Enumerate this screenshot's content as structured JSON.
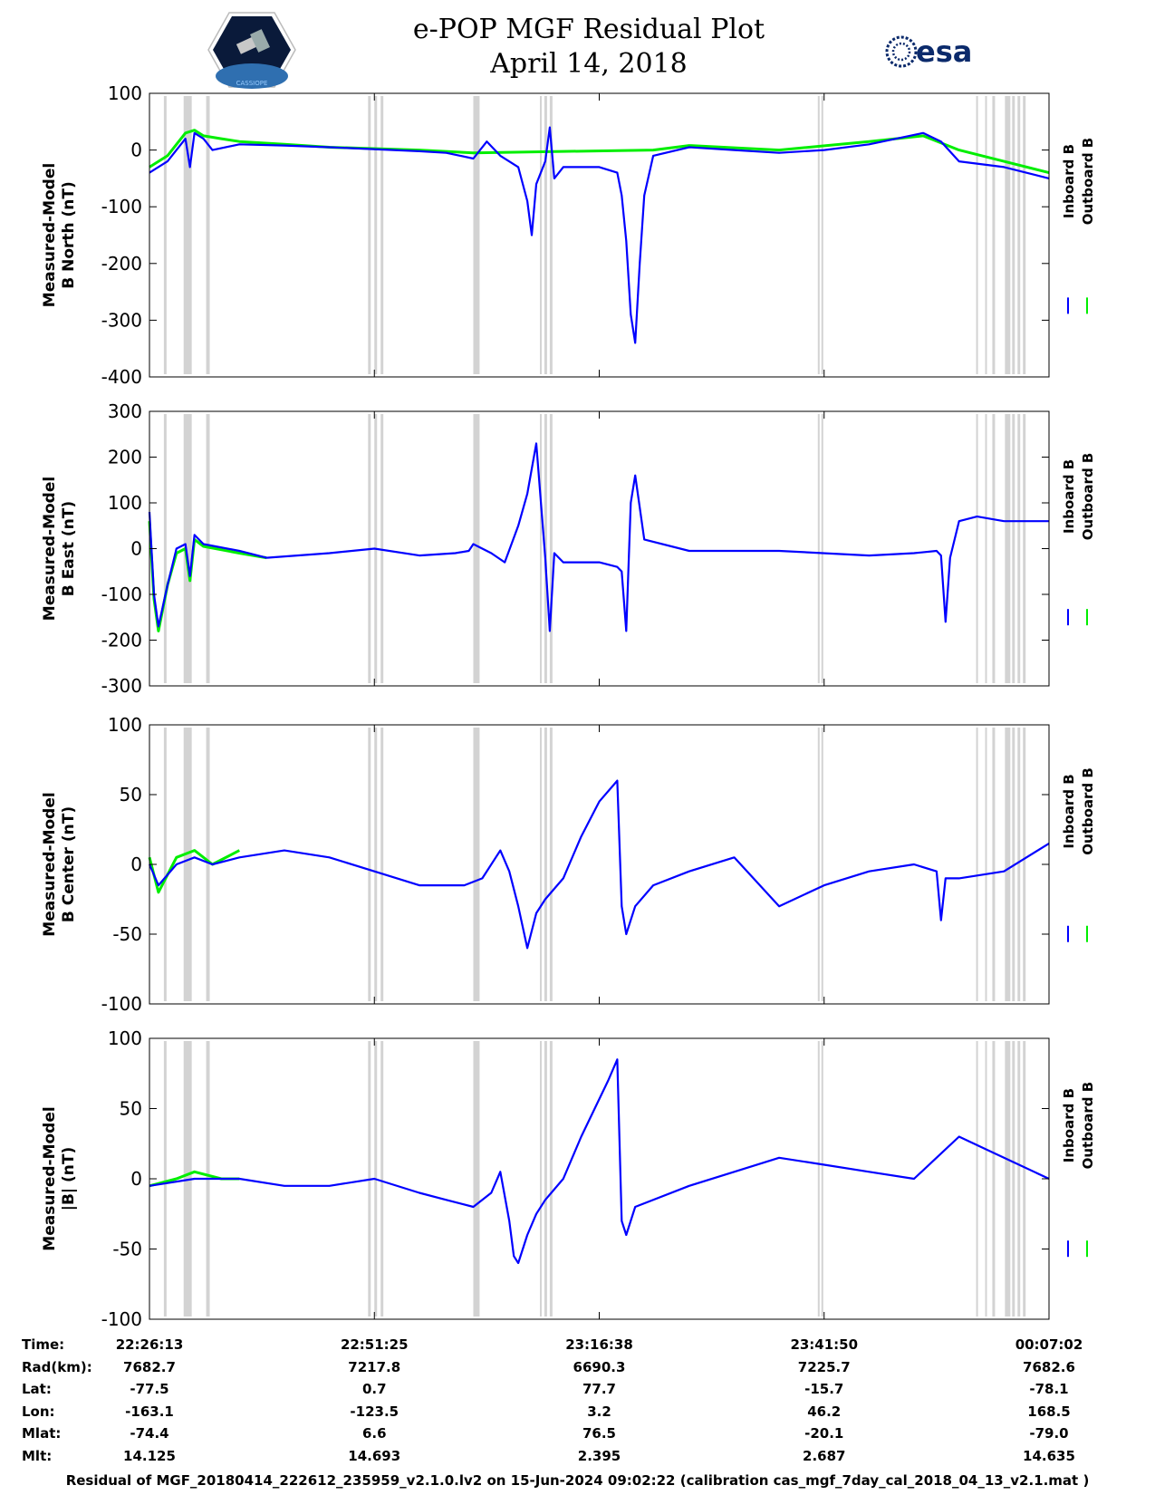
{
  "title": {
    "line1": "e-POP MGF Residual Plot",
    "line2": "April 14, 2018"
  },
  "logos": {
    "left": "CASSIOPE",
    "right": "esa"
  },
  "colors": {
    "inboard": "#0000ff",
    "outboard": "#00ee00",
    "gap_bands": "#d3d3d3"
  },
  "gap_bands": [
    [
      0.016,
      0.019
    ],
    [
      0.038,
      0.047
    ],
    [
      0.063,
      0.067
    ],
    [
      0.243,
      0.246
    ],
    [
      0.25,
      0.253
    ],
    [
      0.257,
      0.26
    ],
    [
      0.36,
      0.367
    ],
    [
      0.434,
      0.436
    ],
    [
      0.439,
      0.442
    ],
    [
      0.445,
      0.448
    ],
    [
      0.743,
      0.745
    ],
    [
      0.747,
      0.749
    ],
    [
      0.919,
      0.921
    ],
    [
      0.929,
      0.931
    ],
    [
      0.937,
      0.94
    ],
    [
      0.951,
      0.957
    ],
    [
      0.959,
      0.962
    ],
    [
      0.965,
      0.968
    ],
    [
      0.971,
      0.974
    ]
  ],
  "chart_data": [
    {
      "type": "line",
      "ylabel": "Measured-Model\nB North (nT)",
      "ylim": [
        -400,
        100
      ],
      "yticks": [
        "100",
        "0",
        "-100",
        "-200",
        "-300",
        "-400"
      ],
      "grid": false,
      "legend": [
        "Inboard B",
        "Outboard B"
      ],
      "series": [
        {
          "name": "Inboard B",
          "x": [
            0,
            0.02,
            0.04,
            0.045,
            0.05,
            0.06,
            0.07,
            0.1,
            0.15,
            0.2,
            0.3,
            0.33,
            0.36,
            0.375,
            0.39,
            0.41,
            0.42,
            0.425,
            0.43,
            0.44,
            0.445,
            0.45,
            0.46,
            0.5,
            0.52,
            0.525,
            0.53,
            0.535,
            0.54,
            0.545,
            0.55,
            0.56,
            0.6,
            0.65,
            0.7,
            0.75,
            0.8,
            0.86,
            0.88,
            0.9,
            0.95,
            1.0
          ],
          "y": [
            -40,
            -20,
            20,
            -30,
            30,
            20,
            0,
            10,
            8,
            5,
            -2,
            -5,
            -15,
            15,
            -10,
            -30,
            -90,
            -150,
            -60,
            -20,
            40,
            -50,
            -30,
            -30,
            -40,
            -80,
            -160,
            -290,
            -340,
            -200,
            -80,
            -10,
            5,
            0,
            -5,
            0,
            10,
            30,
            15,
            -20,
            -30,
            -50
          ]
        },
        {
          "name": "Outboard B",
          "x": [
            0,
            0.02,
            0.04,
            0.05,
            0.06,
            0.08,
            0.1,
            0.15,
            0.2,
            0.3,
            0.36,
            0.56,
            0.6,
            0.7,
            0.8,
            0.86,
            0.9,
            0.95,
            1.0
          ],
          "y": [
            -30,
            -10,
            30,
            35,
            25,
            20,
            15,
            10,
            5,
            0,
            -5,
            0,
            8,
            0,
            15,
            25,
            0,
            -20,
            -40
          ]
        }
      ]
    },
    {
      "type": "line",
      "ylabel": "Measured-Model\nB East (nT)",
      "ylim": [
        -300,
        300
      ],
      "yticks": [
        "300",
        "200",
        "100",
        "0",
        "-100",
        "-200",
        "-300"
      ],
      "grid": false,
      "legend": [
        "Inboard B",
        "Outboard B"
      ],
      "series": [
        {
          "name": "Inboard B",
          "x": [
            0,
            0.005,
            0.01,
            0.02,
            0.03,
            0.04,
            0.045,
            0.05,
            0.06,
            0.1,
            0.13,
            0.2,
            0.25,
            0.3,
            0.34,
            0.355,
            0.36,
            0.38,
            0.395,
            0.41,
            0.42,
            0.43,
            0.44,
            0.445,
            0.45,
            0.46,
            0.5,
            0.52,
            0.525,
            0.53,
            0.535,
            0.54,
            0.55,
            0.6,
            0.7,
            0.8,
            0.85,
            0.875,
            0.88,
            0.885,
            0.89,
            0.9,
            0.92,
            0.95,
            1.0
          ],
          "y": [
            80,
            -100,
            -170,
            -80,
            0,
            10,
            -60,
            30,
            10,
            -5,
            -20,
            -10,
            0,
            -15,
            -10,
            -5,
            10,
            -10,
            -30,
            50,
            120,
            230,
            -20,
            -180,
            -10,
            -30,
            -30,
            -40,
            -50,
            -180,
            100,
            160,
            20,
            -5,
            -5,
            -15,
            -10,
            -5,
            -15,
            -160,
            -20,
            60,
            70,
            60,
            60
          ]
        },
        {
          "name": "Outboard B",
          "x": [
            0,
            0.005,
            0.01,
            0.02,
            0.03,
            0.04,
            0.045,
            0.05,
            0.06,
            0.1,
            0.13
          ],
          "y": [
            60,
            -110,
            -180,
            -80,
            -10,
            0,
            -70,
            20,
            5,
            -10,
            -20
          ]
        }
      ]
    },
    {
      "type": "line",
      "ylabel": "Measured-Model\nB Center (nT)",
      "ylim": [
        -100,
        100
      ],
      "yticks": [
        "100",
        "50",
        "0",
        "-50",
        "-100"
      ],
      "grid": false,
      "legend": [
        "Inboard B",
        "Outboard B"
      ],
      "series": [
        {
          "name": "Inboard B",
          "x": [
            0,
            0.01,
            0.03,
            0.05,
            0.07,
            0.1,
            0.15,
            0.2,
            0.25,
            0.3,
            0.35,
            0.37,
            0.385,
            0.39,
            0.4,
            0.41,
            0.42,
            0.43,
            0.44,
            0.46,
            0.48,
            0.5,
            0.52,
            0.525,
            0.53,
            0.54,
            0.56,
            0.6,
            0.65,
            0.7,
            0.75,
            0.8,
            0.85,
            0.875,
            0.88,
            0.885,
            0.9,
            0.95,
            1.0
          ],
          "y": [
            0,
            -15,
            0,
            5,
            0,
            5,
            10,
            5,
            -5,
            -15,
            -15,
            -10,
            5,
            10,
            -5,
            -30,
            -60,
            -35,
            -25,
            -10,
            20,
            45,
            60,
            -30,
            -50,
            -30,
            -15,
            -5,
            5,
            -30,
            -15,
            -5,
            0,
            -5,
            -40,
            -10,
            -10,
            -5,
            15
          ]
        },
        {
          "name": "Outboard B",
          "x": [
            0,
            0.01,
            0.03,
            0.05,
            0.07,
            0.1
          ],
          "y": [
            5,
            -20,
            5,
            10,
            0,
            10
          ]
        }
      ]
    },
    {
      "type": "line",
      "ylabel": "Measured-Model\n|B| (nT)",
      "ylim": [
        -100,
        100
      ],
      "yticks": [
        "100",
        "50",
        "0",
        "-50",
        "-100"
      ],
      "grid": false,
      "legend": [
        "Inboard B",
        "Outboard B"
      ],
      "series": [
        {
          "name": "Inboard B",
          "x": [
            0,
            0.05,
            0.1,
            0.15,
            0.2,
            0.25,
            0.3,
            0.33,
            0.36,
            0.38,
            0.39,
            0.4,
            0.405,
            0.41,
            0.42,
            0.43,
            0.44,
            0.46,
            0.48,
            0.51,
            0.52,
            0.525,
            0.53,
            0.54,
            0.6,
            0.65,
            0.7,
            0.75,
            0.8,
            0.85,
            0.9,
            0.95,
            1.0
          ],
          "y": [
            -5,
            0,
            0,
            -5,
            -5,
            0,
            -10,
            -15,
            -20,
            -10,
            5,
            -30,
            -55,
            -60,
            -40,
            -25,
            -15,
            0,
            30,
            70,
            85,
            -30,
            -40,
            -20,
            -5,
            5,
            15,
            10,
            5,
            0,
            30,
            15,
            0
          ]
        },
        {
          "name": "Outboard B",
          "x": [
            0,
            0.03,
            0.05,
            0.08,
            0.1
          ],
          "y": [
            -5,
            0,
            5,
            0,
            0
          ]
        }
      ]
    }
  ],
  "xaxis": {
    "ticks": [
      "22:26:13",
      "22:51:25",
      "23:16:38",
      "23:41:50",
      "00:07:02"
    ]
  },
  "footer": {
    "labels": [
      "Time:",
      "Rad(km):",
      "Lat:",
      "Lon:",
      "Mlat:",
      "Mlt:"
    ],
    "columns": [
      [
        "22:26:13",
        "7682.7",
        "-77.5",
        "-163.1",
        "-74.4",
        "14.125"
      ],
      [
        "22:51:25",
        "7217.8",
        "0.7",
        "-123.5",
        "6.6",
        "14.693"
      ],
      [
        "23:16:38",
        "6690.3",
        "77.7",
        "3.2",
        "76.5",
        "2.395"
      ],
      [
        "23:41:50",
        "7225.7",
        "-15.7",
        "46.2",
        "-20.1",
        "2.687"
      ],
      [
        "00:07:02",
        "7682.6",
        "-78.1",
        "168.5",
        "-79.0",
        "14.635"
      ]
    ],
    "note": "Residual of MGF_20180414_222612_235959_v2.1.0.lv2 on 15-Jun-2024 09:02:22 (calibration cas_mgf_7day_cal_2018_04_13_v2.1.mat )"
  }
}
